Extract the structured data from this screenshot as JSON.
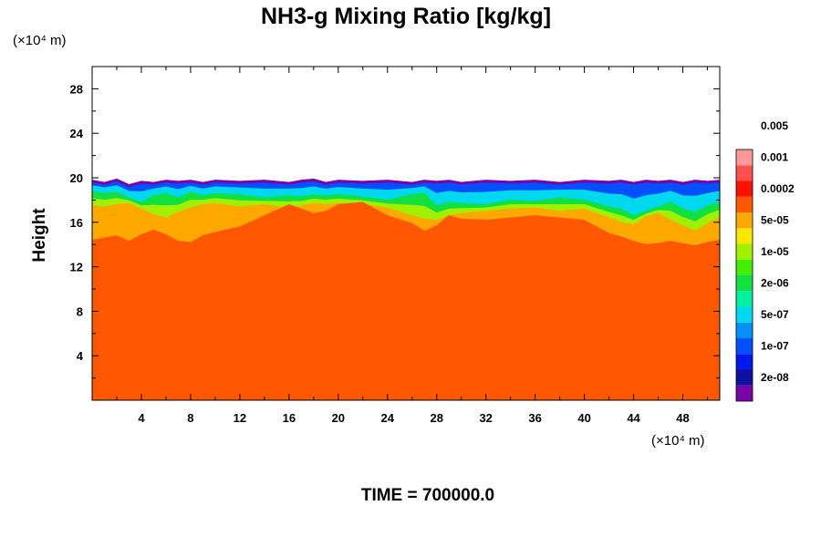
{
  "chart_data": {
    "type": "heatmap",
    "title": "NH3-g Mixing Ratio [kg/kg]",
    "ylabel": "Height",
    "x_unit": "(×10⁴ m)",
    "y_unit": "(×10⁴ m)",
    "footer": "TIME = 700000.0",
    "xlim": [
      0,
      51
    ],
    "ylim": [
      0,
      30
    ],
    "x_ticks": [
      4,
      8,
      12,
      16,
      20,
      24,
      28,
      32,
      36,
      40,
      44,
      48
    ],
    "y_ticks": [
      4,
      8,
      12,
      16,
      20,
      24,
      28
    ],
    "colorbar": {
      "colors": [
        "#7b00a8",
        "#1010a0",
        "#0018f0",
        "#0050ff",
        "#0090ff",
        "#00d8f0",
        "#00f0a0",
        "#10e040",
        "#40f000",
        "#a0f000",
        "#f8e800",
        "#ffa800",
        "#ff5800",
        "#ff1000",
        "#ff5050",
        "#ff9898"
      ],
      "labels": [
        "2e-08",
        "1e-07",
        "5e-07",
        "2e-06",
        "1e-05",
        "5e-05",
        "0.0002",
        "0.001",
        "0.005"
      ]
    },
    "field": {
      "x": [
        0,
        1,
        2,
        3,
        4,
        5,
        6,
        7,
        8,
        9,
        10,
        12,
        14,
        16,
        17,
        18,
        19,
        20,
        22,
        24,
        26,
        27,
        28,
        29,
        30,
        32,
        34,
        36,
        38,
        40,
        42,
        43,
        44,
        45,
        46,
        47,
        48,
        49,
        50,
        51
      ],
      "top_boundary": [
        19.8,
        19.6,
        19.9,
        19.4,
        19.7,
        19.6,
        19.8,
        19.7,
        19.8,
        19.6,
        19.8,
        19.7,
        19.8,
        19.6,
        19.8,
        19.9,
        19.6,
        19.8,
        19.7,
        19.8,
        19.6,
        19.8,
        19.7,
        19.8,
        19.6,
        19.8,
        19.7,
        19.8,
        19.6,
        19.8,
        19.7,
        19.8,
        19.6,
        19.8,
        19.7,
        19.8,
        19.6,
        19.8,
        19.7,
        19.8
      ],
      "band_upper": [
        18.8,
        18.6,
        18.7,
        18.2,
        17.8,
        18.4,
        18.6,
        18.2,
        18.7,
        18.4,
        18.6,
        18.5,
        18.2,
        18.4,
        18.3,
        18.5,
        18.4,
        18.5,
        18.3,
        18.0,
        18.5,
        18.6,
        17.5,
        17.8,
        17.7,
        17.6,
        18.0,
        17.9,
        18.2,
        18.0,
        17.4,
        17.2,
        16.6,
        17.0,
        17.4,
        17.8,
        17.2,
        16.9,
        17.5,
        17.8
      ],
      "orange_top": [
        17.5,
        17.4,
        17.6,
        17.7,
        17.2,
        16.7,
        16.4,
        16.9,
        17.3,
        17.6,
        17.7,
        17.4,
        17.6,
        17.3,
        17.5,
        17.7,
        17.6,
        17.7,
        17.6,
        17.3,
        16.6,
        16.3,
        16.2,
        16.6,
        16.8,
        17.0,
        17.2,
        17.3,
        17.0,
        17.2,
        16.4,
        16.0,
        15.8,
        16.5,
        16.8,
        16.2,
        15.7,
        15.2,
        15.9,
        16.4
      ],
      "red_top": [
        14.4,
        14.6,
        14.8,
        14.3,
        14.9,
        15.3,
        14.9,
        14.3,
        14.2,
        14.8,
        15.1,
        15.6,
        16.6,
        17.6,
        17.2,
        16.8,
        17.0,
        17.6,
        17.8,
        16.6,
        15.9,
        15.2,
        15.7,
        16.6,
        16.3,
        16.2,
        16.4,
        16.6,
        16.4,
        16.2,
        15.0,
        14.7,
        14.3,
        14.0,
        14.1,
        14.3,
        14.1,
        13.9,
        14.2,
        14.4
      ]
    }
  }
}
